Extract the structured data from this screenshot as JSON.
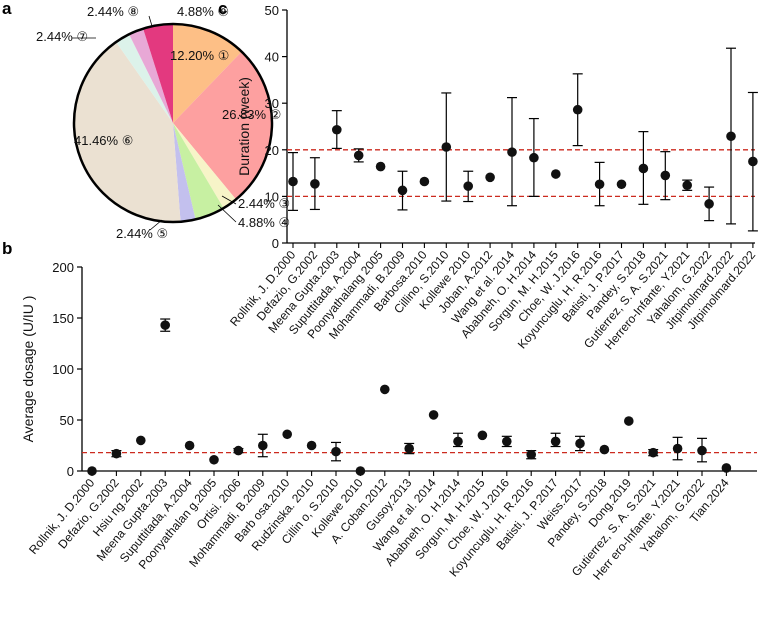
{
  "panel_labels": {
    "a": "a",
    "b": "b",
    "c": "c"
  },
  "colors": {
    "red_line": "#cc2a1f",
    "axis": "#000000",
    "pie": [
      "#fdbf86",
      "#fda0a0",
      "#f7f4c8",
      "#c7f0a2",
      "#c3c0ee",
      "#ebe1d2",
      "#dcf2ea",
      "#e8a8d6",
      "#e3397f"
    ]
  },
  "chart_data": [
    {
      "panel": "a",
      "type": "pie",
      "title": "",
      "slices": [
        {
          "marker": "①",
          "label": "12.20% ①",
          "value": 12.2
        },
        {
          "marker": "②",
          "label": "26.83% ②",
          "value": 26.83
        },
        {
          "marker": "③",
          "label": "2.44% ③",
          "value": 2.44
        },
        {
          "marker": "④",
          "label": "4.88% ④",
          "value": 4.88
        },
        {
          "marker": "⑤",
          "label": "2.44% ⑤",
          "value": 2.44
        },
        {
          "marker": "⑥",
          "label": "41.46% ⑥",
          "value": 41.46
        },
        {
          "marker": "⑦",
          "label": "2.44% ⑦",
          "value": 2.44
        },
        {
          "marker": "⑧",
          "label": "2.44% ⑧",
          "value": 2.44
        },
        {
          "marker": "⑨",
          "label": "4.88% ⑨",
          "value": 4.88
        }
      ]
    },
    {
      "panel": "b",
      "type": "scatter",
      "title": "",
      "xlabel": "",
      "ylabel": "Average dosage (U/IU )",
      "ylim": [
        0,
        200
      ],
      "yticks": [
        0,
        50,
        100,
        150,
        200
      ],
      "reference_line": 18,
      "categories": [
        "Rollnik, J. D.2000",
        "Defazio, G.2002",
        "Hsiu ng.2002",
        "Meena Gupta.2003",
        "Suputtitada, A.2004",
        "Poonyathalan g.2005",
        "Ortisi. 2006",
        "Mohammadi, B.2009",
        "Barb osa.2010",
        "Rudzinska. 2010",
        "Cillin o, S.2010",
        "Kollewe 2010",
        "A. Coban.2012",
        "Gusoy.2013",
        "Wang et al. 2014",
        "Ababneh, O. H.2014",
        "Sorgun, M. H.2015",
        "Choe, W. J.2016",
        "Koyuncuglu, H. R.2016",
        "Batisti, J. P.2017",
        "Weiss.2017",
        "Pandey, S.2018",
        "Dong.2019",
        "Gutierrez, S. A. S.2021",
        "Herr ero-Infante, Y.2021",
        "Yahalom, G.2022",
        "Tian.2024"
      ],
      "values": [
        0,
        17,
        30,
        143,
        25,
        11,
        20,
        25,
        36,
        25,
        19,
        0,
        80,
        22,
        55,
        29,
        35,
        29,
        16,
        29,
        27,
        21,
        49,
        18,
        22,
        20,
        3
      ],
      "err_low": [
        null,
        14,
        null,
        137,
        null,
        null,
        18,
        14,
        null,
        null,
        10,
        null,
        null,
        17,
        null,
        24,
        null,
        24,
        12,
        24,
        20,
        null,
        null,
        15,
        11,
        9,
        null
      ],
      "err_high": [
        null,
        20,
        null,
        149,
        null,
        null,
        22,
        36,
        null,
        null,
        28,
        null,
        null,
        27,
        null,
        37,
        null,
        34,
        20,
        37,
        34,
        null,
        null,
        21,
        33,
        32,
        null
      ]
    },
    {
      "panel": "c",
      "type": "scatter",
      "title": "",
      "xlabel": "",
      "ylabel": "Duration (week)",
      "ylim": [
        0,
        50
      ],
      "yticks": [
        0,
        10,
        20,
        30,
        40,
        50
      ],
      "reference_lines": [
        10,
        20
      ],
      "categories": [
        "Rollnik, J. D.2000",
        "Defazio, G.2002",
        "Meena Gupta.2003",
        "Suputtitada, A.2004",
        "Poonyathalang 2005",
        "Mohammadi, B.2009",
        "Barbosa.2010",
        "Cillino, S.2010",
        "Kollewe 2010",
        "Joban, A.2012",
        "Wang et al. 2014",
        "Ababneh, O. H.2014",
        "Sorgun, M. H.2015",
        "Choe, W. J.2016",
        "Koyuncuglu, H. R.2016",
        "Batisti, J. P.2017",
        "Pandey, S.2018",
        "Gutierrez, S. A. S.2021",
        "Herrero-Infante, Y.2021",
        "Yahalom, G.2022",
        "Jitpimolmard.2022",
        "Jitpimolmard.2022"
      ],
      "values": [
        13.2,
        12.7,
        24.3,
        18.8,
        16.4,
        11.3,
        13.2,
        20.6,
        12.2,
        14.1,
        19.5,
        18.3,
        14.8,
        28.6,
        12.6,
        12.6,
        16.0,
        14.5,
        12.4,
        8.4,
        22.9,
        17.5
      ],
      "err_low": [
        7.0,
        7.2,
        20.3,
        17.4,
        null,
        7.1,
        null,
        9.0,
        8.9,
        null,
        8.0,
        10.0,
        null,
        20.9,
        8.0,
        null,
        8.3,
        9.3,
        11.3,
        4.8,
        4.1,
        2.6
      ],
      "err_high": [
        19.4,
        18.3,
        28.4,
        20.2,
        null,
        15.4,
        null,
        32.2,
        15.4,
        null,
        31.2,
        26.7,
        null,
        36.3,
        17.3,
        null,
        23.9,
        19.6,
        13.5,
        12.0,
        41.8,
        32.3
      ]
    }
  ]
}
